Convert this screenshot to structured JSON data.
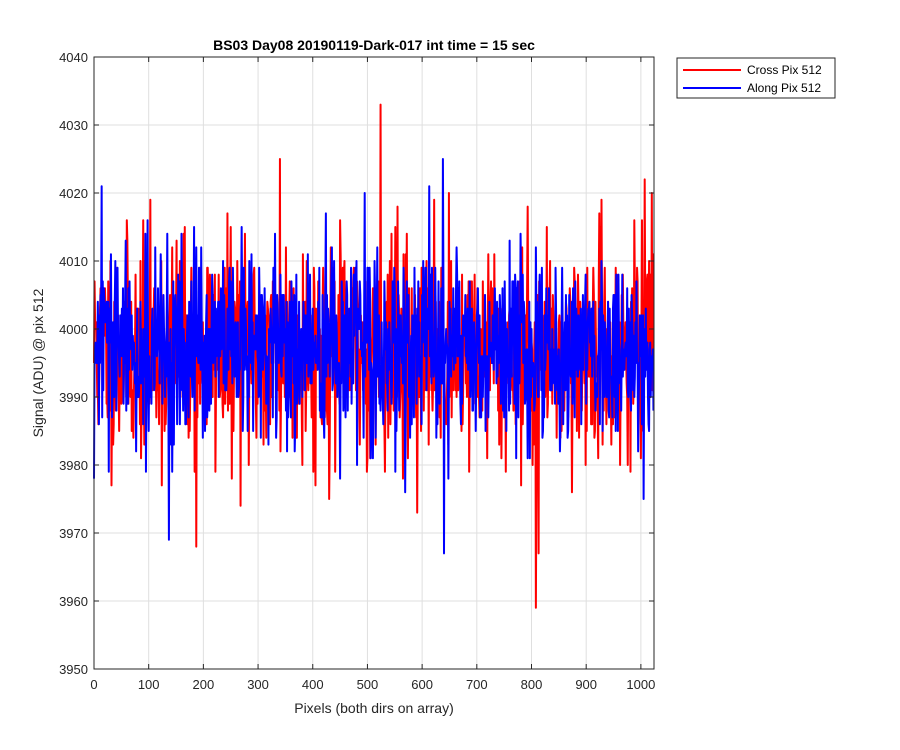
{
  "chart_data": {
    "type": "line",
    "title": "BS03 Day08 20190119-Dark-017 int time = 15 sec",
    "xlabel": "Pixels (both dirs on array)",
    "ylabel": "Signal (ADU) @ pix 512",
    "xlim": [
      0,
      1024
    ],
    "ylim": [
      3950,
      4040
    ],
    "xticks": [
      0,
      100,
      200,
      300,
      400,
      500,
      600,
      700,
      800,
      900,
      1000
    ],
    "yticks": [
      3950,
      3960,
      3970,
      3980,
      3990,
      4000,
      4010,
      4020,
      4030,
      4040
    ],
    "grid": true,
    "legend_position": "outside-top-right",
    "series": [
      {
        "name": "Cross Pix 512",
        "color": "#ff0000",
        "noise": {
          "n": 1024,
          "mean": 3997,
          "sd": 8,
          "seed": 11
        },
        "peaks": [
          [
            3,
            4000
          ],
          [
            187,
            3968
          ],
          [
            340,
            4025
          ],
          [
            524,
            4033
          ],
          [
            808,
            3959
          ],
          [
            813,
            3967
          ],
          [
            1020,
            4020
          ]
        ]
      },
      {
        "name": "Along Pix 512",
        "color": "#0000ff",
        "noise": {
          "n": 1024,
          "mean": 3997,
          "sd": 7,
          "seed": 29
        },
        "peaks": [
          [
            0,
            3978
          ],
          [
            14,
            4021
          ],
          [
            137,
            3969
          ],
          [
            638,
            4025
          ],
          [
            640,
            3967
          ],
          [
            1005,
            3975
          ]
        ]
      }
    ]
  }
}
